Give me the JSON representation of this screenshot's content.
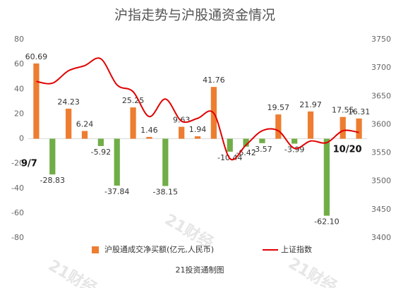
{
  "chart_data": {
    "type": "bar_line",
    "title": "沪指走势与沪股通资金情况",
    "source": "21投资通制图",
    "watermark": "21财经",
    "categories": [
      "9/7",
      null,
      null,
      null,
      null,
      null,
      null,
      null,
      null,
      null,
      null,
      null,
      null,
      null,
      null,
      null,
      null,
      null,
      null,
      null,
      "10/20"
    ],
    "series": [
      {
        "name": "沪股通成交净买额(亿元,人民币)",
        "type": "bar",
        "color": "#ed7d31",
        "negative_color": "#70ad47",
        "values": [
          60.69,
          -28.83,
          24.23,
          6.24,
          -5.92,
          -37.84,
          25.25,
          1.46,
          -38.15,
          9.63,
          1.94,
          41.76,
          -10.44,
          -6.42,
          -3.57,
          19.57,
          -3.99,
          21.97,
          -62.1,
          17.55,
          16.31
        ],
        "value_labels": [
          "60.69",
          "-28.83",
          "24.23",
          "6.24",
          "-5.92",
          "-37.84",
          "25.25",
          "1.46",
          "-38.15",
          "9.63",
          "1.94",
          "41.76",
          "-10.44",
          "-6.42",
          "-3.57",
          "19.57",
          "-3.99",
          "21.97",
          "-62.10",
          "17.55",
          "16.31"
        ]
      },
      {
        "name": "上证指数",
        "type": "line",
        "color": "#e00000",
        "axis": "y2",
        "values": [
          3676,
          3673,
          3695,
          3704,
          3716,
          3670,
          3658,
          3614,
          3645,
          3606,
          3611,
          3620,
          3540,
          3564,
          3589,
          3589,
          3558,
          3571,
          3568,
          3589,
          3586
        ]
      }
    ],
    "ylim": [
      -80,
      80
    ],
    "yticks": [
      -80,
      -60,
      -40,
      -20,
      0,
      20,
      40,
      60,
      80
    ],
    "y2lim": [
      3400,
      3750
    ],
    "y2ticks": [
      3400,
      3450,
      3500,
      3550,
      3600,
      3650,
      3700,
      3750
    ],
    "grid": false,
    "legend": "bottom"
  }
}
